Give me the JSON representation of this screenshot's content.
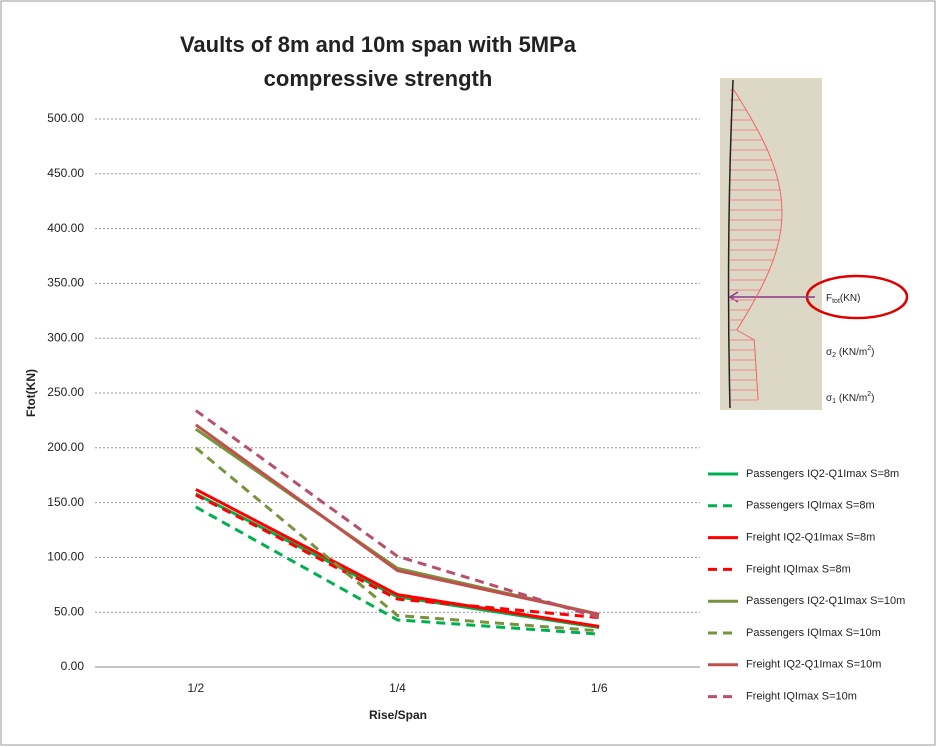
{
  "chart_data": {
    "type": "line",
    "title": [
      "Vaults of 8m and 10m span with 5MPa",
      "compressive strength"
    ],
    "x_label": "Rise/Span",
    "y_label": "Ftot(KN)",
    "categories": [
      "1/2",
      "1/4",
      "1/6"
    ],
    "ylim": [
      0,
      500
    ],
    "yticks": [
      {
        "value": 0,
        "label": "0.00"
      },
      {
        "value": 50,
        "label": "50.00"
      },
      {
        "value": 100,
        "label": "100.00"
      },
      {
        "value": 150,
        "label": "150.00"
      },
      {
        "value": 200,
        "label": "200.00"
      },
      {
        "value": 250,
        "label": "250.00"
      },
      {
        "value": 300,
        "label": "300.00"
      },
      {
        "value": 350,
        "label": "350.00"
      },
      {
        "value": 400,
        "label": "400.00"
      },
      {
        "value": 450,
        "label": "450.00"
      },
      {
        "value": 500,
        "label": "500.00"
      }
    ],
    "grid": true,
    "legend": "right",
    "series": [
      {
        "name": "Passengers IQ2-Q1Imax S=8m",
        "color": "#00b050",
        "dashed": false,
        "values": [
          158,
          64,
          36
        ]
      },
      {
        "name": "Passengers IQImax S=8m",
        "color": "#00b050",
        "dashed": true,
        "values": [
          146,
          43,
          30
        ]
      },
      {
        "name": "Freight IQ2-Q1Imax S=8m",
        "color": "#ff0000",
        "dashed": false,
        "values": [
          162,
          66,
          37
        ]
      },
      {
        "name": "Freight IQImax S=8m",
        "color": "#ff0000",
        "dashed": true,
        "values": [
          157,
          62,
          45
        ]
      },
      {
        "name": "Passengers IQ2-Q1Imax S=10m",
        "color": "#77933c",
        "dashed": false,
        "values": [
          217,
          90,
          48
        ]
      },
      {
        "name": "Passengers IQImax S=10m",
        "color": "#77933c",
        "dashed": true,
        "values": [
          200,
          47,
          33
        ]
      },
      {
        "name": "Freight IQ2-Q1Imax S=10m",
        "color": "#c0504d",
        "dashed": false,
        "values": [
          221,
          88,
          48
        ]
      },
      {
        "name": "Freight IQImax S=10m",
        "color": "#b8506a",
        "dashed": true,
        "values": [
          234,
          101,
          45
        ]
      }
    ],
    "inset": {
      "force_label": [
        "F",
        "tot",
        "(KN)"
      ],
      "stress2_label": [
        "σ",
        "2",
        " (KN/m",
        "2",
        ")"
      ],
      "stress1_label": [
        "σ",
        "1",
        " (KN/m",
        "2",
        ")"
      ]
    }
  }
}
